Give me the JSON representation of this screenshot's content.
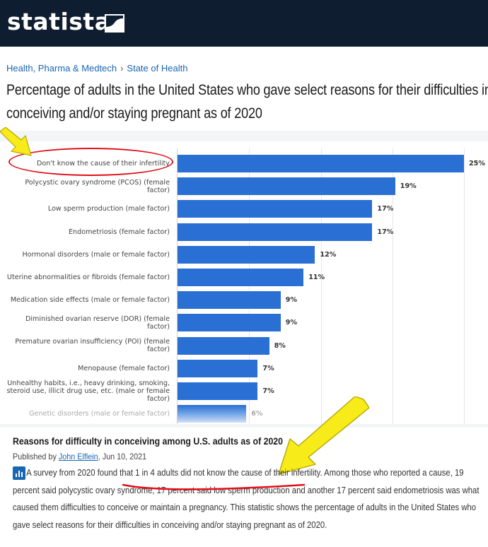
{
  "brand": {
    "name": "statista"
  },
  "breadcrumb": {
    "items": [
      "Health, Pharma & Medtech",
      "State of Health"
    ],
    "separator": "›"
  },
  "title": {
    "line1": "Percentage of adults in the United States who gave select reasons for their difficulties in",
    "line2": "conceiving and/or staying pregnant as of 2020"
  },
  "chart_data": {
    "type": "bar",
    "orientation": "horizontal",
    "categories": [
      "Don't know the cause of their infertility",
      "Polycystic ovary syndrome (PCOS) (female factor)",
      "Low sperm production (male factor)",
      "Endometriosis (female factor)",
      "Hormonal disorders (male or female factor)",
      "Uterine abnormalities or fibroids (female factor)",
      "Medication side effects (male or female factor)",
      "Diminished ovarian reserve (DOR) (female factor)",
      "Premature ovarian insufficiency (POI) (female factor)",
      "Menopause (female factor)",
      "Unhealthy habits, i.e., heavy drinking, smoking, steroid use, illicit drug use, etc. (male or female factor)",
      "Genetic disorders (male or female factor)"
    ],
    "values": [
      25,
      19,
      17,
      17,
      12,
      11,
      9,
      9,
      8,
      7,
      7,
      6
    ],
    "value_labels": [
      "25%",
      "19%",
      "17%",
      "17%",
      "12%",
      "11%",
      "9%",
      "9%",
      "8%",
      "7%",
      "7%",
      "6%"
    ],
    "title": "",
    "xlabel": "",
    "ylabel": "",
    "xlim": [
      0,
      25
    ],
    "grid": true,
    "colors": {
      "bar": "#2a6fd4"
    }
  },
  "annotations": {
    "highlight_color": "#e0101a",
    "arrow_color": "#f7ec1a",
    "highlight_target": "Don't know the cause of their infertility"
  },
  "description": {
    "heading": "Reasons for difficulty in conceiving among U.S. adults as of 2020",
    "published_prefix": "Published by",
    "author": "John Elflein",
    "date": ", Jun 10, 2021",
    "text": "A survey from 2020 found that 1 in 4 adults did not know the cause of their infertility. Among those who reported a cause, 19 percent said polycystic ovary syndrome, 17 percent said low sperm production and another 17 percent said endometriosis was what caused them difficulties to conceive or maintain a pregnancy. This statistic shows the percentage of adults in the United States who gave select reasons for their difficulties in conceiving and/or staying pregnant as of 2020."
  },
  "colors": {
    "header_bg": "#0f1d30",
    "link": "#1866b4"
  }
}
